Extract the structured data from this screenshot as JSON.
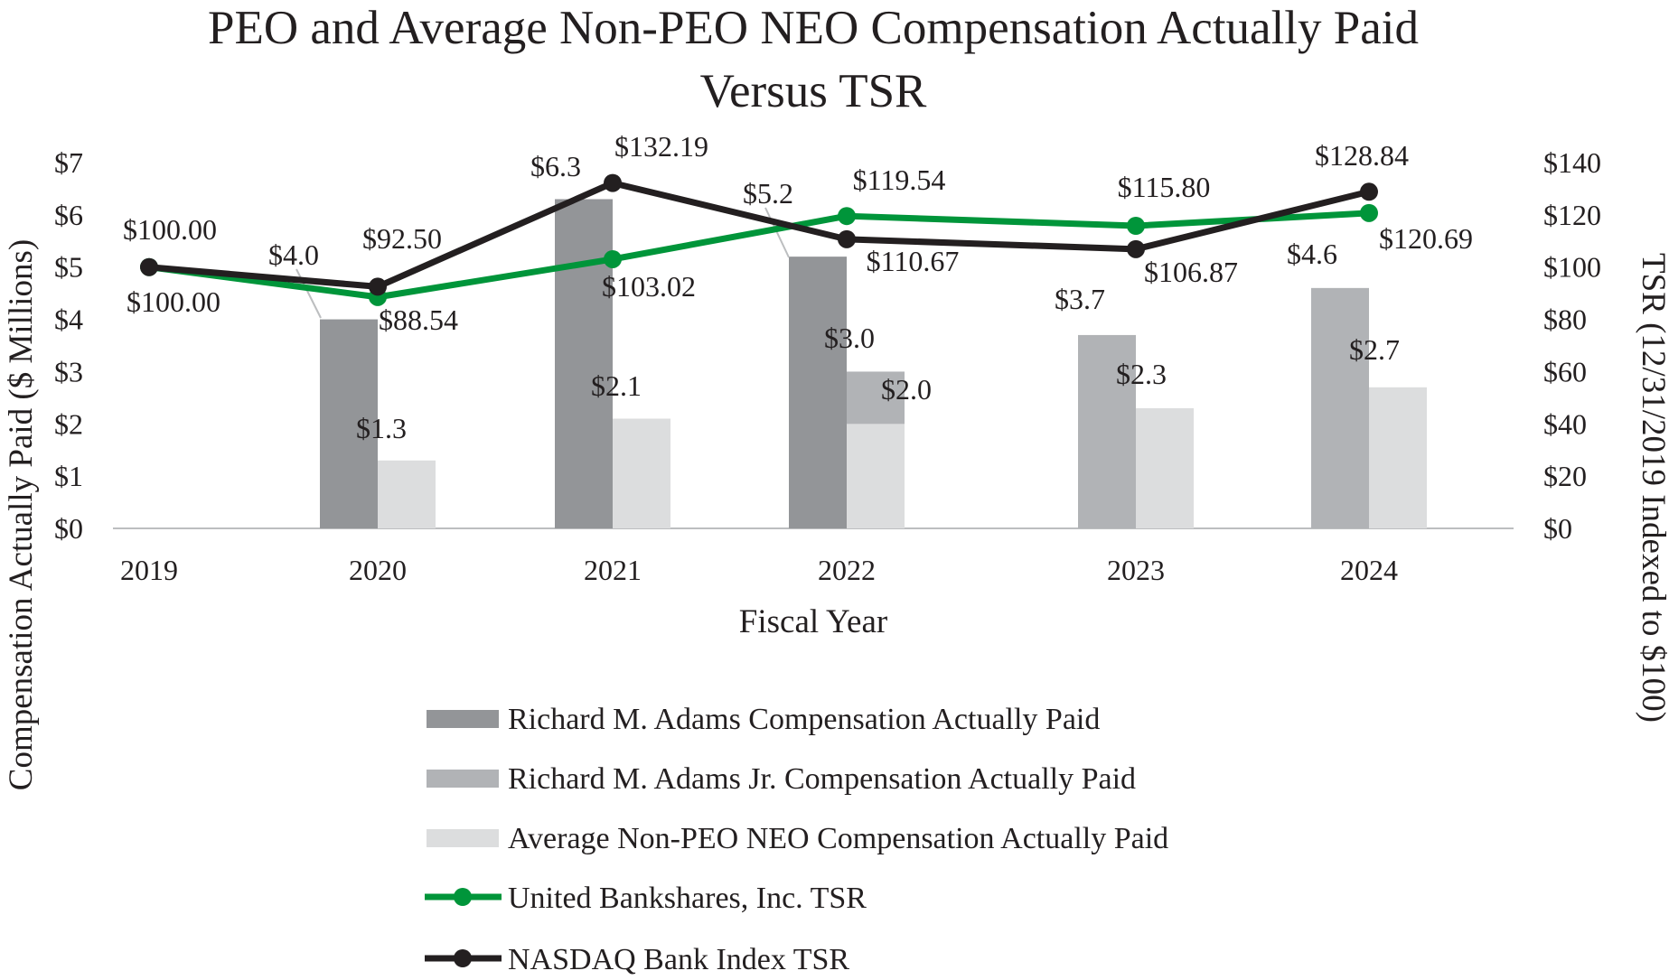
{
  "chart_data": {
    "type": "bar",
    "title_lines": [
      "PEO and Average Non-PEO NEO Compensation Actually Paid",
      "Versus TSR"
    ],
    "xlabel": "Fiscal Year",
    "ylabel": "Compensation Actually Paid ($ Millions)",
    "y2label": "TSR (12/31/2019 Indexed to $100)",
    "categories": [
      "2019",
      "2020",
      "2021",
      "2022",
      "2023",
      "2024"
    ],
    "ylim": [
      0,
      7
    ],
    "y2lim": [
      0,
      140
    ],
    "yticks": [
      "$0",
      "$1",
      "$2",
      "$3",
      "$4",
      "$5",
      "$6",
      "$7"
    ],
    "y2ticks": [
      "$0",
      "$20",
      "$40",
      "$60",
      "$80",
      "$100",
      "$120",
      "$140"
    ],
    "colors": {
      "adams": "#939598",
      "adams_jr": "#b1b3b6",
      "non_peo": "#dcddde",
      "ubsi": "#00953a",
      "nasdaq": "#231f20",
      "axis": "#bcbec0"
    },
    "bar_series": [
      {
        "name": "Richard M. Adams Compensation Actually Paid",
        "color_key": "adams",
        "values": [
          null,
          4.0,
          6.3,
          5.2,
          null,
          null
        ],
        "labels": [
          null,
          "$4.0",
          "$6.3",
          "$5.2",
          null,
          null
        ]
      },
      {
        "name": "Richard M. Adams Jr. Compensation Actually Paid",
        "color_key": "adams_jr",
        "values": [
          null,
          null,
          null,
          3.0,
          3.7,
          4.6
        ],
        "labels": [
          null,
          null,
          null,
          "$3.0",
          "$3.7",
          "$4.6"
        ]
      },
      {
        "name": "Average Non-PEO NEO Compensation Actually Paid",
        "color_key": "non_peo",
        "values": [
          null,
          1.3,
          2.1,
          2.0,
          2.3,
          2.7
        ],
        "labels": [
          null,
          "$1.3",
          "$2.1",
          "$2.0",
          "$2.3",
          "$2.7"
        ]
      }
    ],
    "line_series": [
      {
        "name": "United Bankshares, Inc. TSR",
        "color_key": "ubsi",
        "values": [
          100.0,
          88.54,
          103.02,
          119.54,
          115.8,
          120.69
        ],
        "labels": [
          "$100.00",
          "$88.54",
          "$103.02",
          "$119.54",
          "$115.80",
          "$120.69"
        ]
      },
      {
        "name": "NASDAQ Bank Index TSR",
        "color_key": "nasdaq",
        "values": [
          100.0,
          92.5,
          132.19,
          110.67,
          106.87,
          128.84
        ],
        "labels": [
          "$100.00",
          "$92.50",
          "$132.19",
          "$110.67",
          "$106.87",
          "$128.84"
        ]
      }
    ]
  }
}
